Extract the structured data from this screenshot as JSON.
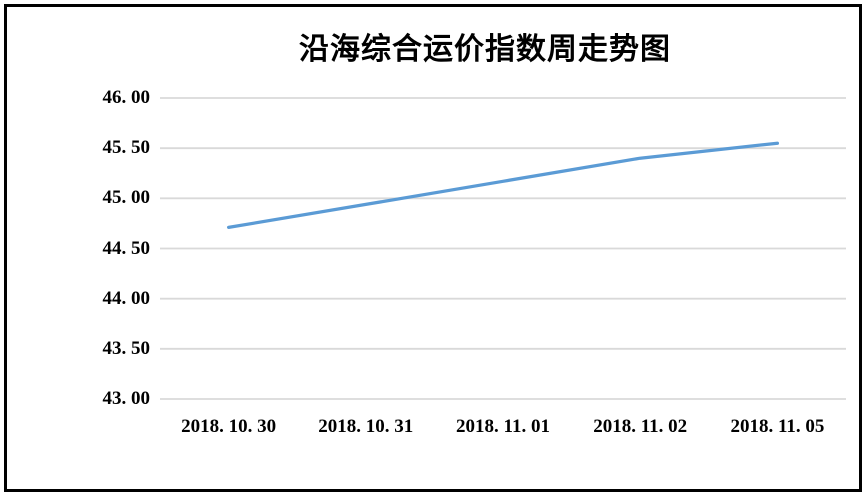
{
  "page": {
    "background_color": "#ffffff",
    "frame_border_color": "#000000"
  },
  "chart_data": {
    "type": "line",
    "title": "沿海综合运价指数周走势图",
    "categories": [
      "2018. 10. 30",
      "2018. 10. 31",
      "2018. 11. 01",
      "2018. 11. 02",
      "2018. 11. 05"
    ],
    "series": [
      {
        "name": "沿海综合运价指数",
        "values": [
          44.71,
          44.94,
          45.17,
          45.4,
          45.55
        ]
      }
    ],
    "xlabel": "",
    "ylabel": "",
    "ylim": [
      43.0,
      46.0
    ],
    "ytick_interval": 0.5,
    "ytick_labels": [
      "46. 00",
      "45. 50",
      "45. 00",
      "44. 50",
      "44. 00",
      "43. 50",
      "43. 00"
    ],
    "grid": true,
    "legend_position": "none",
    "line_color": "#5B9BD5",
    "gridline_color": "#D9D9D9",
    "text_color": "#000000"
  }
}
